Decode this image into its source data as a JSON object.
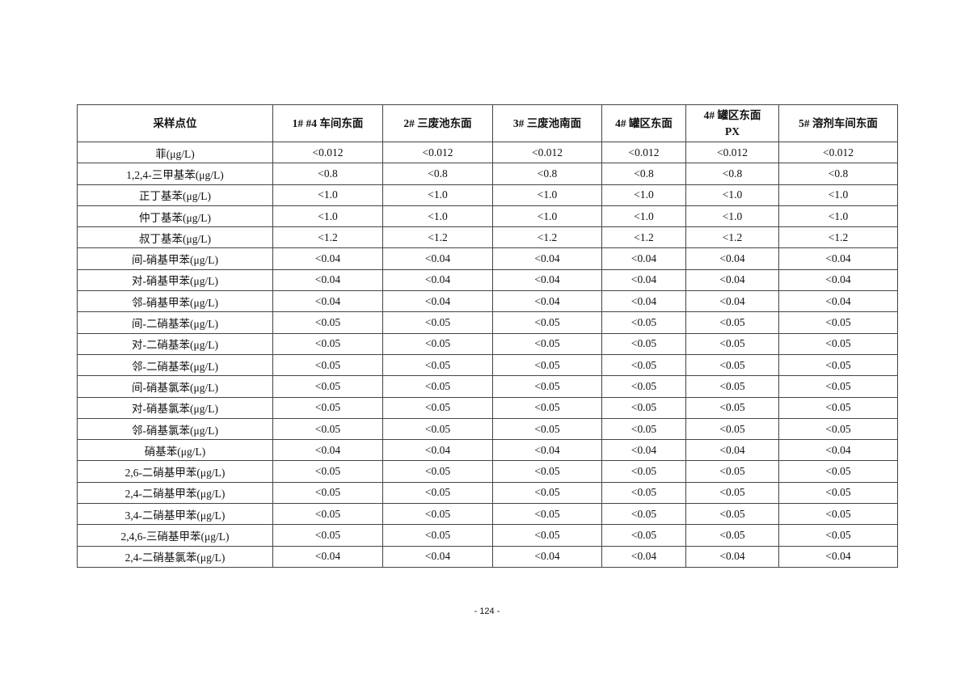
{
  "table": {
    "headers": [
      "采样点位",
      "1# #4 车间东面",
      "2#  三废池东面",
      "3#  三废池南面",
      "4#  罐区东面",
      "4#  罐区东面 PX",
      "5#  溶剂车间东面"
    ],
    "rows": [
      {
        "name": "菲(μg/L)",
        "values": [
          "<0.012",
          "<0.012",
          "<0.012",
          "<0.012",
          "<0.012",
          "<0.012"
        ]
      },
      {
        "name": "1,2,4-三甲基苯(μg/L)",
        "values": [
          "<0.8",
          "<0.8",
          "<0.8",
          "<0.8",
          "<0.8",
          "<0.8"
        ]
      },
      {
        "name": "正丁基苯(μg/L)",
        "values": [
          "<1.0",
          "<1.0",
          "<1.0",
          "<1.0",
          "<1.0",
          "<1.0"
        ]
      },
      {
        "name": "仲丁基苯(μg/L)",
        "values": [
          "<1.0",
          "<1.0",
          "<1.0",
          "<1.0",
          "<1.0",
          "<1.0"
        ]
      },
      {
        "name": "叔丁基苯(μg/L)",
        "values": [
          "<1.2",
          "<1.2",
          "<1.2",
          "<1.2",
          "<1.2",
          "<1.2"
        ]
      },
      {
        "name": "间-硝基甲苯(μg/L)",
        "values": [
          "<0.04",
          "<0.04",
          "<0.04",
          "<0.04",
          "<0.04",
          "<0.04"
        ]
      },
      {
        "name": "对-硝基甲苯(μg/L)",
        "values": [
          "<0.04",
          "<0.04",
          "<0.04",
          "<0.04",
          "<0.04",
          "<0.04"
        ]
      },
      {
        "name": "邻-硝基甲苯(μg/L)",
        "values": [
          "<0.04",
          "<0.04",
          "<0.04",
          "<0.04",
          "<0.04",
          "<0.04"
        ]
      },
      {
        "name": "间-二硝基苯(μg/L)",
        "values": [
          "<0.05",
          "<0.05",
          "<0.05",
          "<0.05",
          "<0.05",
          "<0.05"
        ]
      },
      {
        "name": "对-二硝基苯(μg/L)",
        "values": [
          "<0.05",
          "<0.05",
          "<0.05",
          "<0.05",
          "<0.05",
          "<0.05"
        ]
      },
      {
        "name": "邻-二硝基苯(μg/L)",
        "values": [
          "<0.05",
          "<0.05",
          "<0.05",
          "<0.05",
          "<0.05",
          "<0.05"
        ]
      },
      {
        "name": "间-硝基氯苯(μg/L)",
        "values": [
          "<0.05",
          "<0.05",
          "<0.05",
          "<0.05",
          "<0.05",
          "<0.05"
        ]
      },
      {
        "name": "对-硝基氯苯(μg/L)",
        "values": [
          "<0.05",
          "<0.05",
          "<0.05",
          "<0.05",
          "<0.05",
          "<0.05"
        ]
      },
      {
        "name": "邻-硝基氯苯(μg/L)",
        "values": [
          "<0.05",
          "<0.05",
          "<0.05",
          "<0.05",
          "<0.05",
          "<0.05"
        ]
      },
      {
        "name": "硝基苯(μg/L)",
        "values": [
          "<0.04",
          "<0.04",
          "<0.04",
          "<0.04",
          "<0.04",
          "<0.04"
        ]
      },
      {
        "name": "2,6-二硝基甲苯(μg/L)",
        "values": [
          "<0.05",
          "<0.05",
          "<0.05",
          "<0.05",
          "<0.05",
          "<0.05"
        ]
      },
      {
        "name": "2,4-二硝基甲苯(μg/L)",
        "values": [
          "<0.05",
          "<0.05",
          "<0.05",
          "<0.05",
          "<0.05",
          "<0.05"
        ]
      },
      {
        "name": "3,4-二硝基甲苯(μg/L)",
        "values": [
          "<0.05",
          "<0.05",
          "<0.05",
          "<0.05",
          "<0.05",
          "<0.05"
        ]
      },
      {
        "name": "2,4,6-三硝基甲苯(μg/L)",
        "values": [
          "<0.05",
          "<0.05",
          "<0.05",
          "<0.05",
          "<0.05",
          "<0.05"
        ]
      },
      {
        "name": "2,4-二硝基氯苯(μg/L)",
        "values": [
          "<0.04",
          "<0.04",
          "<0.04",
          "<0.04",
          "<0.04",
          "<0.04"
        ]
      }
    ]
  },
  "footer": {
    "page_number": "- 124 -"
  }
}
